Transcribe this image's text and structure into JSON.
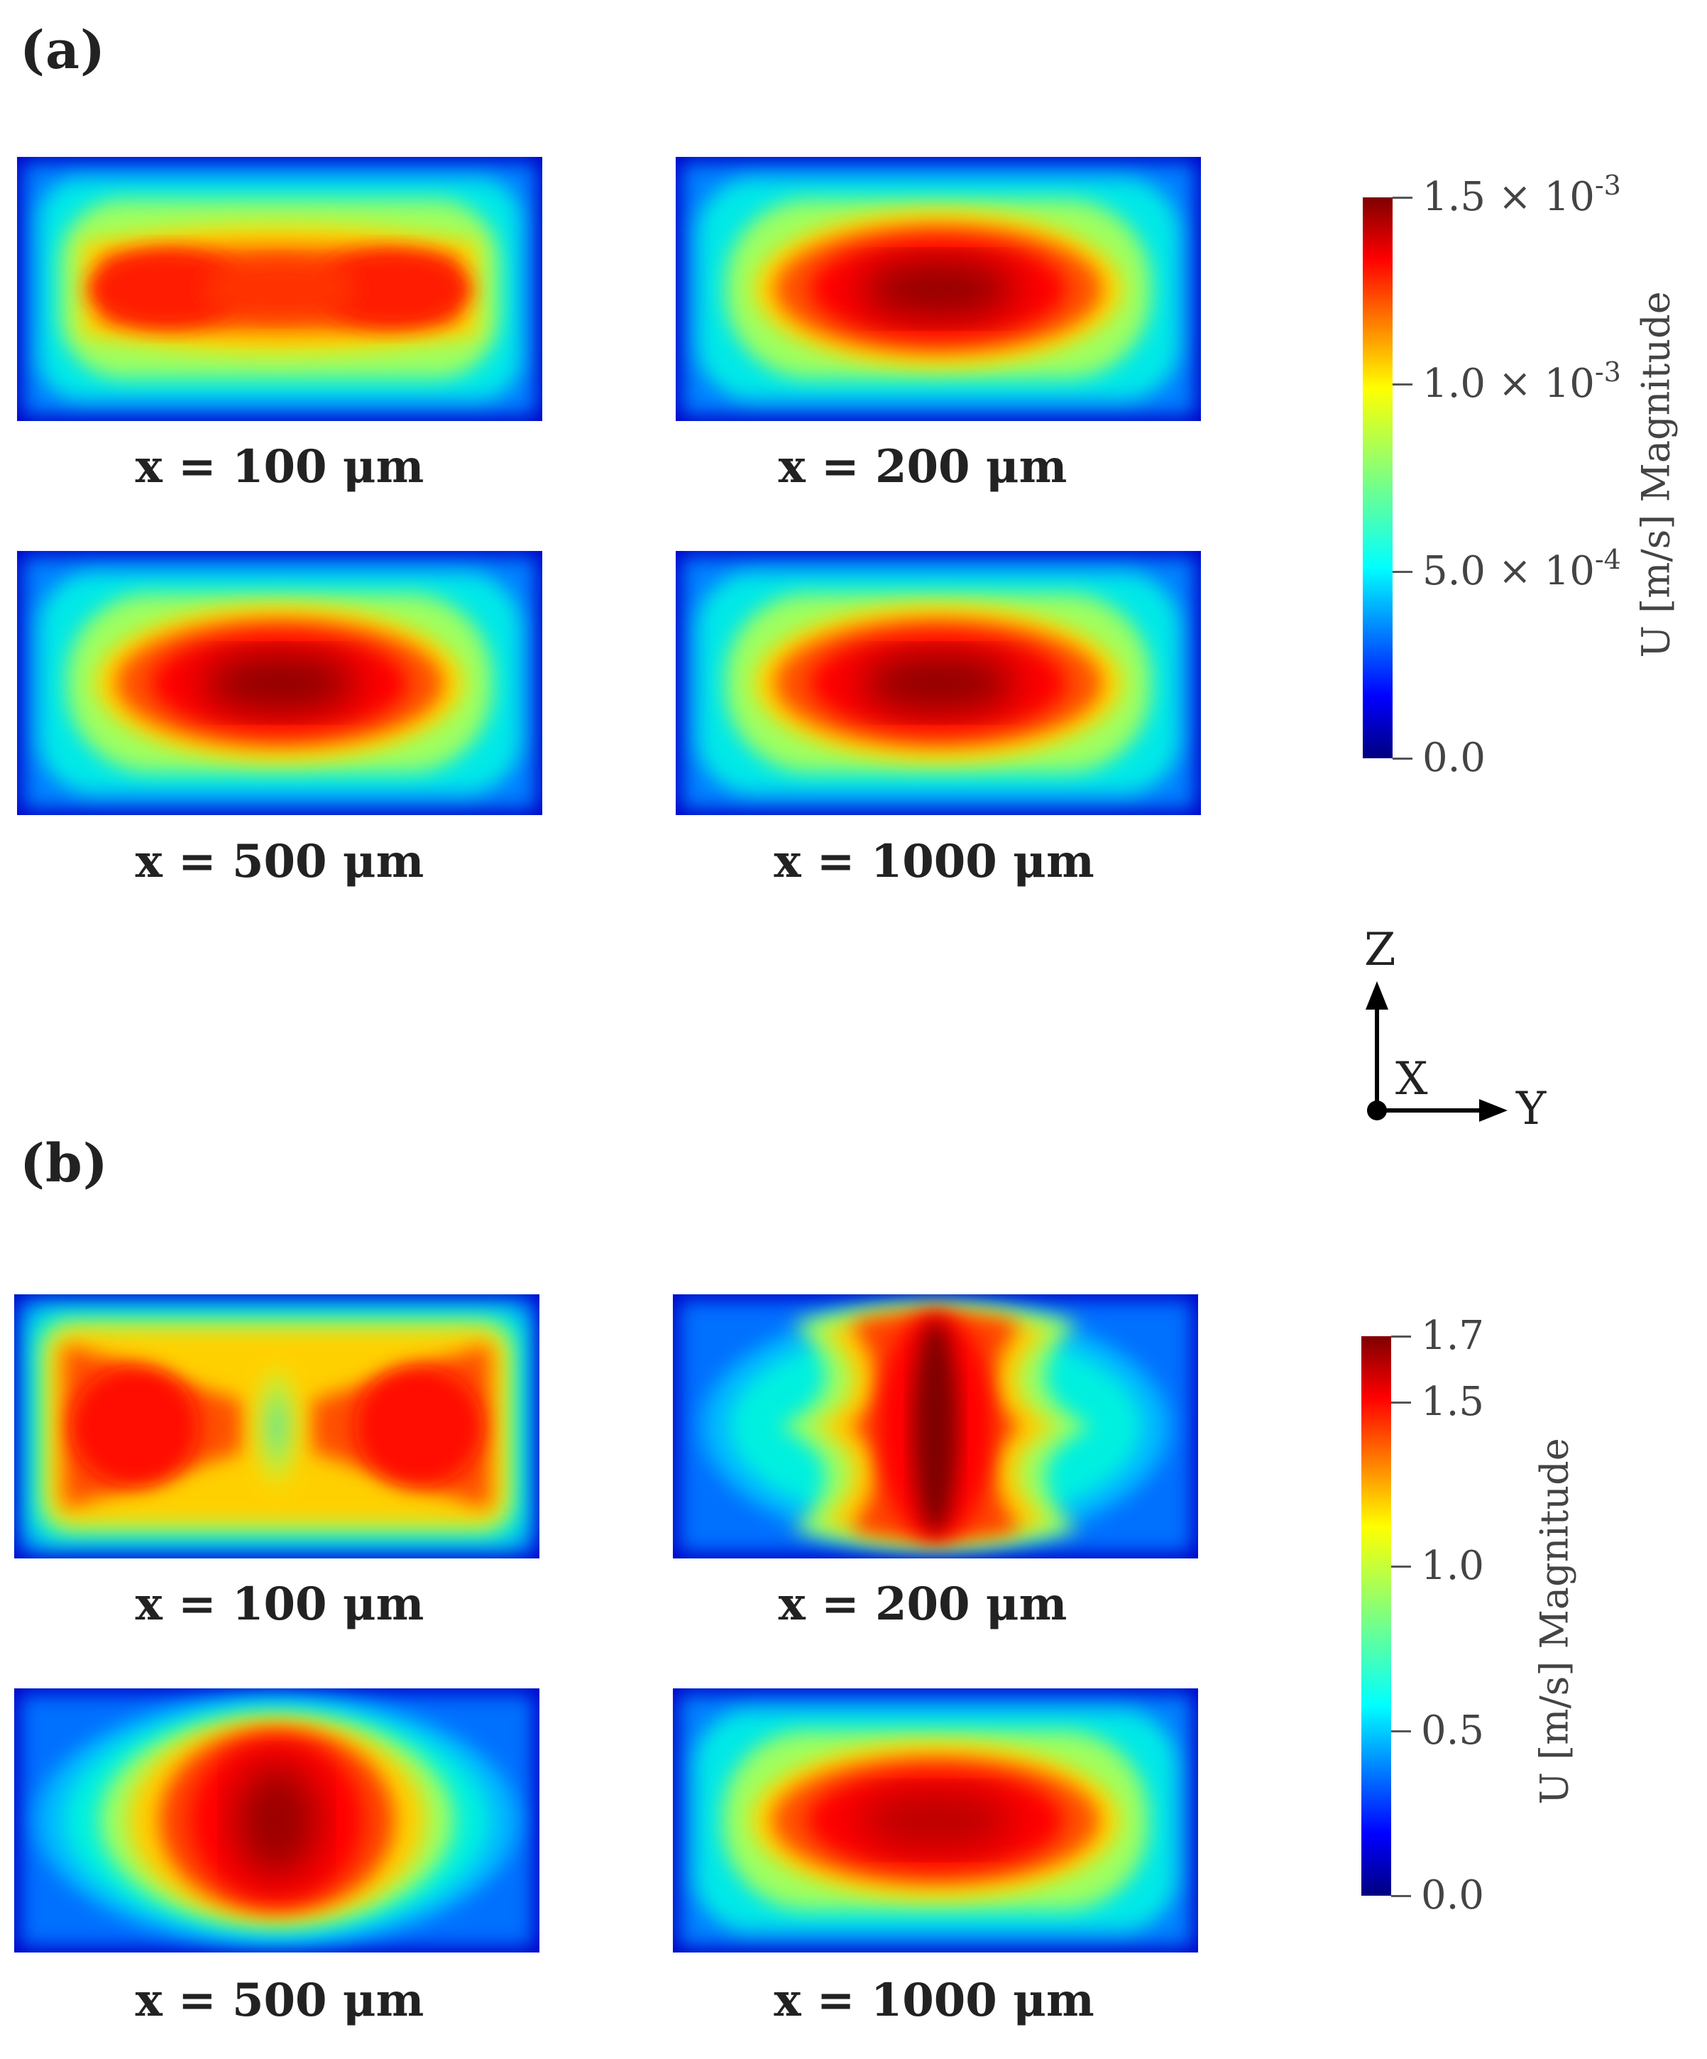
{
  "figure": {
    "panel_a": {
      "label": "(a)",
      "captions": [
        "x = 100 μm",
        "x = 200 μm",
        "x = 500 μm",
        "x = 1000 μm"
      ],
      "colorbar": {
        "title": "U [m/s] Magnitude",
        "min": 0,
        "max": 0.0015,
        "ticks": [
          {
            "value": 0.0015,
            "mantissa": "1.5 × 10",
            "exp": "-3"
          },
          {
            "value": 0.001,
            "mantissa": "1.0 × 10",
            "exp": "-3"
          },
          {
            "value": 0.0005,
            "mantissa": "5.0 × 10",
            "exp": "-4"
          },
          {
            "value": 0,
            "mantissa": "0.0",
            "exp": ""
          }
        ]
      }
    },
    "panel_b": {
      "label": "(b)",
      "captions": [
        "x = 100 μm",
        "x = 200 μm",
        "x = 500 μm",
        "x = 1000 μm"
      ],
      "colorbar": {
        "title": "U [m/s] Magnitude",
        "min": 0,
        "max": 1.7,
        "ticks": [
          {
            "value": 1.7,
            "mantissa": "1.7",
            "exp": ""
          },
          {
            "value": 1.5,
            "mantissa": "1.5",
            "exp": ""
          },
          {
            "value": 1.0,
            "mantissa": "1.0",
            "exp": ""
          },
          {
            "value": 0.5,
            "mantissa": "0.5",
            "exp": ""
          },
          {
            "value": 0,
            "mantissa": "0.0",
            "exp": ""
          }
        ]
      }
    },
    "axes": {
      "z": "Z",
      "x": "X",
      "y": "Y"
    },
    "colors": {
      "jet": [
        "#00007f",
        "#0000ff",
        "#007fff",
        "#00ffff",
        "#7fff7f",
        "#ffff00",
        "#ff7f00",
        "#ff0000",
        "#7f0000"
      ],
      "background": "#ffffff"
    }
  }
}
